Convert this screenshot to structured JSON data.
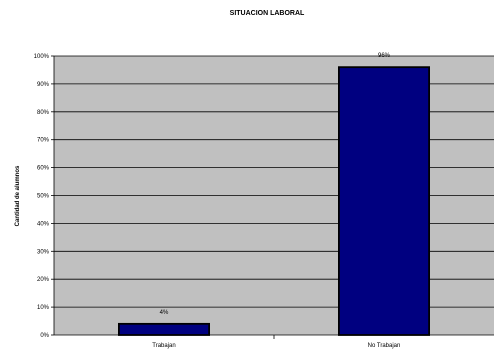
{
  "chart_data": {
    "type": "bar",
    "title": "SITUACION LABORAL",
    "xlabel": "",
    "ylabel": "Cantidad de alumnos",
    "categories": [
      "Trabajan",
      "No Trabajan"
    ],
    "values": [
      4,
      96
    ],
    "data_labels": [
      "4%",
      "96%"
    ],
    "ylim": [
      0,
      100
    ],
    "yticks": [
      0,
      10,
      20,
      30,
      40,
      50,
      60,
      70,
      80,
      90,
      100
    ],
    "ytick_labels": [
      "0%",
      "10%",
      "20%",
      "30%",
      "40%",
      "50%",
      "60%",
      "70%",
      "80%",
      "90%",
      "100%"
    ],
    "grid": true,
    "legend": "none",
    "colors": {
      "bar": "#000080",
      "bar_edge": "#000000",
      "plot_background": "#c0c0c0",
      "gridline": "#000000"
    }
  }
}
